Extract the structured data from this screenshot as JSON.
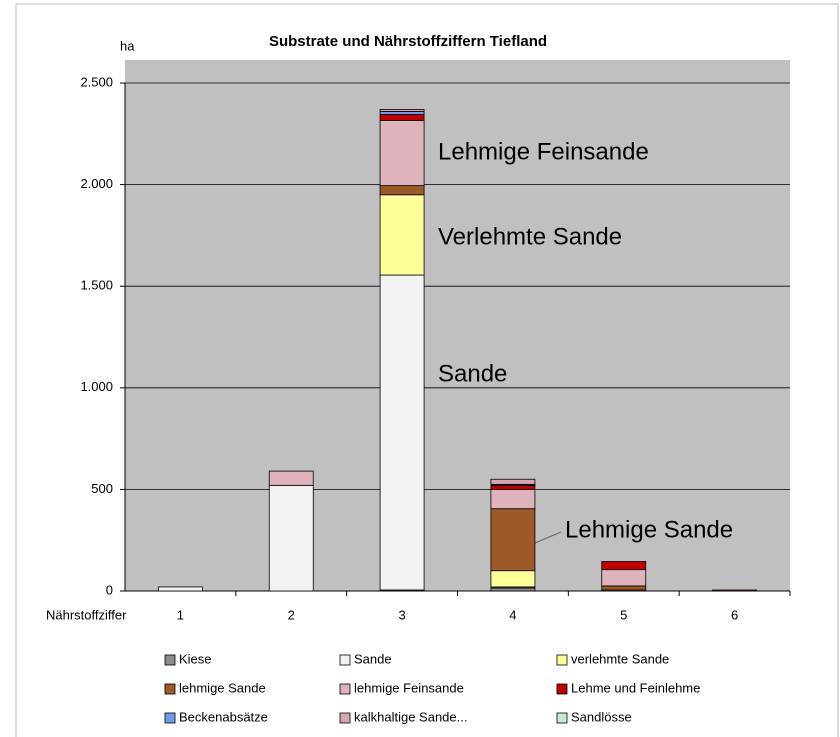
{
  "chart_data": {
    "type": "stacked-bar",
    "title": "Substrate und Nährstoffziffern Tiefland",
    "y_label": "ha",
    "x_label": "Nährstoffziffer",
    "categories": [
      "1",
      "2",
      "3",
      "4",
      "5",
      "6"
    ],
    "series": [
      {
        "name": "Kiese",
        "color": "#8c8c8c",
        "values": [
          0,
          0,
          5,
          15,
          0,
          0
        ]
      },
      {
        "name": "Sande",
        "color": "#f2f2f2",
        "values": [
          20,
          520,
          1550,
          5,
          5,
          0
        ]
      },
      {
        "name": "verlehmte Sande",
        "color": "#ffff99",
        "values": [
          0,
          0,
          395,
          80,
          0,
          0
        ]
      },
      {
        "name": "lehmige Sande",
        "color": "#9c5a28",
        "values": [
          0,
          0,
          45,
          305,
          20,
          5
        ]
      },
      {
        "name": "lehmige Feinsande",
        "color": "#dfb3bc",
        "values": [
          0,
          70,
          320,
          95,
          80,
          0
        ]
      },
      {
        "name": "Lehme und Feinlehme",
        "color": "#c00000",
        "values": [
          0,
          0,
          30,
          20,
          40,
          0
        ]
      },
      {
        "name": "Beckenabsätze",
        "color": "#6f9be8",
        "values": [
          0,
          0,
          15,
          5,
          0,
          0
        ]
      },
      {
        "name": "kalkhaltige Sande...",
        "color": "#d8a6b0",
        "values": [
          0,
          0,
          10,
          25,
          0,
          0
        ]
      },
      {
        "name": "Sandlösse",
        "color": "#c9e8d6",
        "values": [
          0,
          0,
          0,
          0,
          0,
          0
        ]
      }
    ],
    "ylim": [
      0,
      2500
    ],
    "yticks": [
      0,
      500,
      {
        "value": 1000,
        "label": "1.000"
      },
      {
        "value": 1500,
        "label": "1.500"
      },
      {
        "value": 2000,
        "label": "2.000"
      },
      {
        "value": 2500,
        "label": "2.500"
      }
    ],
    "grid": true,
    "annotations": [
      "Lehmige Feinsande",
      "Verlehmte Sande",
      "Sande",
      "Lehmige Sande"
    ]
  }
}
